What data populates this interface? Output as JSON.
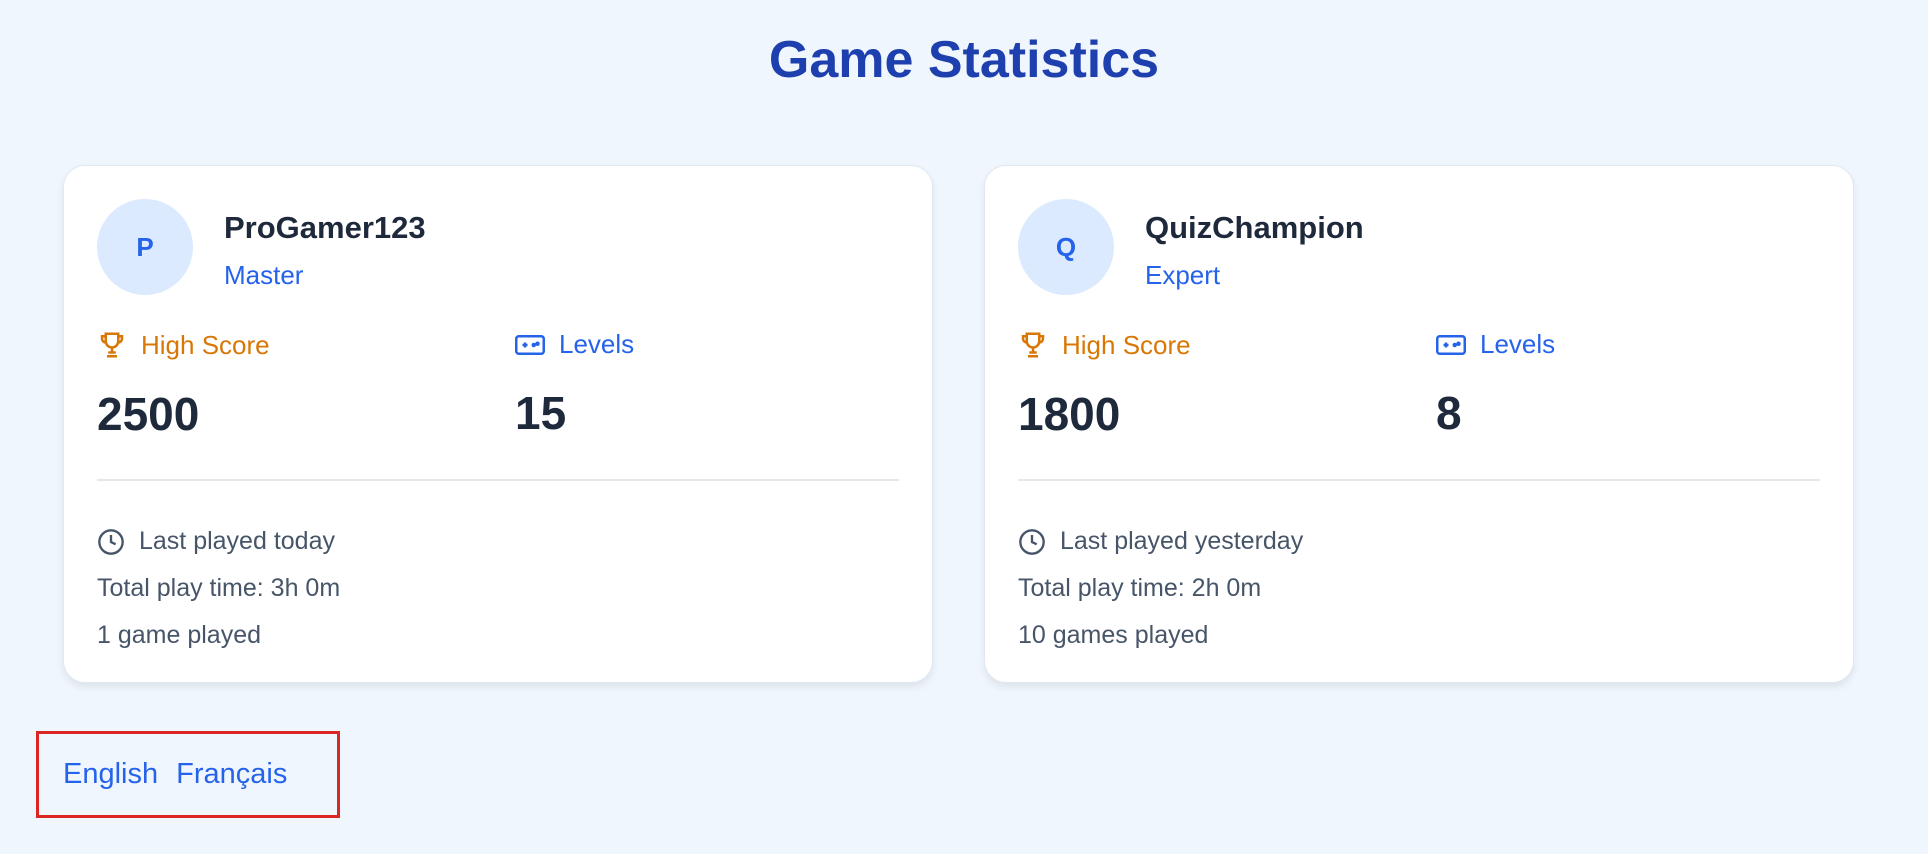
{
  "page": {
    "title": "Game Statistics"
  },
  "labels": {
    "high_score": "High Score",
    "levels": "Levels"
  },
  "players": [
    {
      "initial": "P",
      "name": "ProGamer123",
      "rank": "Master",
      "high_score": "2500",
      "levels": "15",
      "last_played": "Last played today",
      "play_time": "Total play time: 3h 0m",
      "games": "1 game played"
    },
    {
      "initial": "Q",
      "name": "QuizChampion",
      "rank": "Expert",
      "high_score": "1800",
      "levels": "8",
      "last_played": "Last played yesterday",
      "play_time": "Total play time: 2h 0m",
      "games": "10 games played"
    }
  ],
  "languages": [
    "English",
    "Français"
  ],
  "colors": {
    "title": "#1e40af",
    "accent": "#2563eb",
    "high_score": "#d97706",
    "highlight_box": "#dc2626"
  }
}
